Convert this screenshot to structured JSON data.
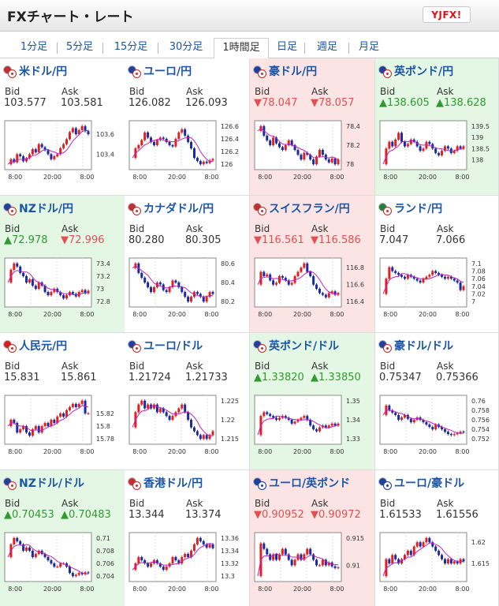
{
  "header": {
    "title": "FXチャート・レート",
    "logo_text": "YJFX!"
  },
  "tabs": [
    {
      "label": "1分足",
      "active": false
    },
    {
      "label": "5分足",
      "active": false
    },
    {
      "label": "15分足",
      "active": false
    },
    {
      "label": "30分足",
      "active": false
    },
    {
      "label": "1時間足",
      "active": true
    },
    {
      "label": "日足",
      "active": false
    },
    {
      "label": "週足",
      "active": false
    },
    {
      "label": "月足",
      "active": false
    }
  ],
  "labels": {
    "bid": "Bid",
    "ask": "Ask"
  },
  "colors": {
    "down_bg": "#fde4e4",
    "up_bg": "#e4f7e4",
    "bull": "#e02020",
    "bear": "#1a2aa0",
    "ma": "#c020c0",
    "ma2": "#20a0b0"
  },
  "pairs": [
    {
      "name": "米ドル/円",
      "flags": [
        "#c03030",
        "#c03030"
      ],
      "bid": "103.577",
      "ask": "103.581",
      "bid_dir": "",
      "ask_dir": "",
      "state": "",
      "ticks": [
        "103.6",
        "103.4"
      ],
      "x_ticks": [
        "8:00",
        "20:00",
        "8:00"
      ],
      "series": [
        103.3,
        103.35,
        103.32,
        103.4,
        103.38,
        103.33,
        103.36,
        103.4,
        103.45,
        103.42,
        103.5,
        103.47,
        103.44,
        103.4,
        103.35,
        103.38,
        103.4,
        103.46,
        103.5,
        103.55,
        103.62,
        103.66,
        103.6,
        103.64,
        103.68,
        103.63,
        103.6
      ]
    },
    {
      "name": "ユーロ/円",
      "flags": [
        "#2040a0",
        "#c03030"
      ],
      "bid": "126.082",
      "ask": "126.093",
      "bid_dir": "",
      "ask_dir": "",
      "state": "",
      "ticks": [
        "126.6",
        "126.4",
        "126.2",
        "126"
      ],
      "x_ticks": [
        "8:00",
        "20:00",
        "8:00"
      ],
      "series": [
        126.1,
        126.25,
        126.3,
        126.38,
        126.5,
        126.42,
        126.35,
        126.3,
        126.38,
        126.42,
        126.4,
        126.35,
        126.3,
        126.28,
        126.4,
        126.5,
        126.55,
        126.45,
        126.35,
        126.25,
        126.1,
        126.05,
        126.0,
        126.04,
        126.02,
        126.06,
        126.08
      ]
    },
    {
      "name": "豪ドル/円",
      "flags": [
        "#2040a0",
        "#c03030"
      ],
      "bid": "▼78.047",
      "ask": "▼78.057",
      "bid_dir": "dn",
      "ask_dir": "dn",
      "state": "down",
      "ticks": [
        "78.4",
        "78.2",
        "78"
      ],
      "x_ticks": [
        "8:00",
        "20:00",
        "8:00"
      ],
      "series": [
        78.35,
        78.4,
        78.3,
        78.25,
        78.2,
        78.28,
        78.22,
        78.18,
        78.15,
        78.2,
        78.25,
        78.2,
        78.15,
        78.1,
        78.05,
        78.12,
        78.1,
        78.05,
        78.0,
        78.08,
        78.15,
        78.1,
        78.05,
        78.02,
        78.06,
        78.0,
        78.05
      ]
    },
    {
      "name": "英ポンド/円",
      "flags": [
        "#2040a0",
        "#c03030"
      ],
      "bid": "▲138.605",
      "ask": "▲138.628",
      "bid_dir": "upc",
      "ask_dir": "upc",
      "state": "up",
      "ticks": [
        "139.5",
        "139",
        "138.5",
        "138"
      ],
      "x_ticks": [
        "8:00",
        "20:00",
        "8:00"
      ],
      "series": [
        137.8,
        138.5,
        138.8,
        138.6,
        138.9,
        139.2,
        138.8,
        138.6,
        138.7,
        138.9,
        138.8,
        138.6,
        138.4,
        138.5,
        138.8,
        138.7,
        138.5,
        138.3,
        138.2,
        138.4,
        138.6,
        138.5,
        138.3,
        138.4,
        138.6,
        138.5,
        138.6
      ]
    },
    {
      "name": "NZドル/円",
      "flags": [
        "#2040a0",
        "#c03030"
      ],
      "bid": "▲72.978",
      "ask": "▼72.996",
      "bid_dir": "upc",
      "ask_dir": "dn",
      "state": "up",
      "ticks": [
        "73.4",
        "73.2",
        "73",
        "72.8"
      ],
      "x_ticks": [
        "8:00",
        "20:00",
        "8:00"
      ],
      "series": [
        73.1,
        73.3,
        73.4,
        73.35,
        73.25,
        73.2,
        73.1,
        73.15,
        73.05,
        73.0,
        73.1,
        73.05,
        72.95,
        72.9,
        72.95,
        73.0,
        72.95,
        72.9,
        72.85,
        72.9,
        72.95,
        72.92,
        72.88,
        72.95,
        72.98,
        72.93,
        72.97
      ]
    },
    {
      "name": "カナダドル/円",
      "flags": [
        "#c03030",
        "#c03030"
      ],
      "bid": "80.280",
      "ask": "80.305",
      "bid_dir": "",
      "ask_dir": "",
      "state": "",
      "ticks": [
        "80.6",
        "80.4",
        "80.2"
      ],
      "x_ticks": [
        "8:00",
        "20:00",
        "8:00"
      ],
      "series": [
        80.55,
        80.6,
        80.5,
        80.45,
        80.4,
        80.35,
        80.3,
        80.35,
        80.4,
        80.38,
        80.32,
        80.3,
        80.35,
        80.42,
        80.4,
        80.35,
        80.3,
        80.25,
        80.2,
        80.25,
        80.3,
        80.28,
        80.25,
        80.2,
        80.25,
        80.3,
        80.28
      ]
    },
    {
      "name": "スイスフラン/円",
      "flags": [
        "#c03030",
        "#c03030"
      ],
      "bid": "▼116.561",
      "ask": "▼116.586",
      "bid_dir": "dn",
      "ask_dir": "dn",
      "state": "down",
      "ticks": [
        "116.8",
        "116.6",
        "116.4"
      ],
      "x_ticks": [
        "8:00",
        "20:00",
        "8:00"
      ],
      "series": [
        116.6,
        116.75,
        116.7,
        116.72,
        116.65,
        116.6,
        116.62,
        116.7,
        116.68,
        116.65,
        116.6,
        116.62,
        116.7,
        116.75,
        116.8,
        116.85,
        116.75,
        116.7,
        116.6,
        116.55,
        116.5,
        116.48,
        116.45,
        116.5,
        116.52,
        116.48,
        116.5
      ]
    },
    {
      "name": "ランド/円",
      "flags": [
        "#208040",
        "#c03030"
      ],
      "bid": "7.047",
      "ask": "7.066",
      "bid_dir": "",
      "ask_dir": "",
      "state": "",
      "ticks": [
        "7.1",
        "7.08",
        "7.06",
        "7.04",
        "7.02",
        "7"
      ],
      "x_ticks": [
        "8:00",
        "20:00",
        "8:00"
      ],
      "series": [
        7.02,
        7.06,
        7.09,
        7.08,
        7.075,
        7.07,
        7.065,
        7.06,
        7.07,
        7.065,
        7.06,
        7.055,
        7.05,
        7.06,
        7.065,
        7.07,
        7.08,
        7.075,
        7.07,
        7.065,
        7.06,
        7.065,
        7.06,
        7.055,
        7.05,
        7.03,
        7.04
      ]
    },
    {
      "name": "人民元/円",
      "flags": [
        "#d02020",
        "#c03030"
      ],
      "bid": "15.831",
      "ask": "15.861",
      "bid_dir": "",
      "ask_dir": "",
      "state": "",
      "ticks": [
        "15.82",
        "15.8",
        "15.78"
      ],
      "x_ticks": [
        "8:00",
        "20:00",
        "8:00"
      ],
      "series": [
        15.8,
        15.81,
        15.805,
        15.79,
        15.795,
        15.8,
        15.79,
        15.785,
        15.795,
        15.8,
        15.79,
        15.8,
        15.805,
        15.8,
        15.81,
        15.805,
        15.815,
        15.82,
        15.815,
        15.825,
        15.83,
        15.835,
        15.83,
        15.835,
        15.84,
        15.82,
        15.82
      ]
    },
    {
      "name": "ユーロ/ドル",
      "flags": [
        "#2040a0",
        "#c03030"
      ],
      "bid": "1.21724",
      "ask": "1.21733",
      "bid_dir": "",
      "ask_dir": "",
      "state": "",
      "ticks": [
        "1.225",
        "1.22",
        "1.215"
      ],
      "x_ticks": [
        "8:00",
        "20:00",
        "8:00"
      ],
      "series": [
        1.218,
        1.222,
        1.224,
        1.225,
        1.223,
        1.224,
        1.223,
        1.224,
        1.222,
        1.223,
        1.222,
        1.221,
        1.22,
        1.221,
        1.222,
        1.223,
        1.224,
        1.222,
        1.22,
        1.218,
        1.217,
        1.216,
        1.215,
        1.216,
        1.215,
        1.216,
        1.217
      ]
    },
    {
      "name": "英ポンド/ドル",
      "flags": [
        "#2040a0",
        "#c03030"
      ],
      "bid": "▲1.33820",
      "ask": "▲1.33850",
      "bid_dir": "upc",
      "ask_dir": "upc",
      "state": "up",
      "ticks": [
        "1.35",
        "1.34",
        "1.33"
      ],
      "x_ticks": [
        "8:00",
        "20:00",
        "8:00"
      ],
      "series": [
        1.332,
        1.342,
        1.344,
        1.343,
        1.342,
        1.341,
        1.34,
        1.341,
        1.342,
        1.341,
        1.34,
        1.338,
        1.339,
        1.34,
        1.341,
        1.342,
        1.34,
        1.337,
        1.335,
        1.334,
        1.336,
        1.337,
        1.336,
        1.337,
        1.338,
        1.337,
        1.338
      ]
    },
    {
      "name": "豪ドル/ドル",
      "flags": [
        "#2040a0",
        "#c03030"
      ],
      "bid": "0.75347",
      "ask": "0.75366",
      "bid_dir": "",
      "ask_dir": "",
      "state": "",
      "ticks": [
        "0.76",
        "0.758",
        "0.756",
        "0.754",
        "0.752"
      ],
      "x_ticks": [
        "8:00",
        "20:00",
        "8:00"
      ],
      "series": [
        0.757,
        0.759,
        0.758,
        0.7575,
        0.757,
        0.756,
        0.7565,
        0.757,
        0.7562,
        0.7555,
        0.756,
        0.7565,
        0.756,
        0.7555,
        0.755,
        0.7545,
        0.754,
        0.755,
        0.7545,
        0.754,
        0.7535,
        0.753,
        0.7528,
        0.753,
        0.7532,
        0.7535,
        0.7534
      ]
    },
    {
      "name": "NZドル/ドル",
      "flags": [
        "#2040a0",
        "#c03030"
      ],
      "bid": "▲0.70453",
      "ask": "▲0.70483",
      "bid_dir": "upc",
      "ask_dir": "upc",
      "state": "up",
      "ticks": [
        "0.71",
        "0.708",
        "0.706",
        "0.704"
      ],
      "x_ticks": [
        "8:00",
        "20:00",
        "8:00"
      ],
      "series": [
        0.707,
        0.709,
        0.71,
        0.7095,
        0.709,
        0.708,
        0.7085,
        0.708,
        0.707,
        0.7075,
        0.708,
        0.7075,
        0.707,
        0.7065,
        0.706,
        0.7055,
        0.7055,
        0.706,
        0.706,
        0.7055,
        0.7045,
        0.704,
        0.7042,
        0.7045,
        0.7043,
        0.7046,
        0.7045
      ]
    },
    {
      "name": "香港ドル/円",
      "flags": [
        "#c03030",
        "#c03030"
      ],
      "bid": "13.344",
      "ask": "13.374",
      "bid_dir": "",
      "ask_dir": "",
      "state": "",
      "ticks": [
        "13.36",
        "13.34",
        "13.32",
        "13.3"
      ],
      "x_ticks": [
        "8:00",
        "20:00",
        "8:00"
      ],
      "series": [
        13.31,
        13.32,
        13.33,
        13.325,
        13.32,
        13.315,
        13.32,
        13.325,
        13.32,
        13.315,
        13.31,
        13.315,
        13.32,
        13.33,
        13.325,
        13.32,
        13.33,
        13.335,
        13.33,
        13.34,
        13.35,
        13.36,
        13.355,
        13.35,
        13.345,
        13.35,
        13.344
      ]
    },
    {
      "name": "ユーロ/英ポンド",
      "flags": [
        "#2040a0",
        "#2040a0"
      ],
      "bid": "▼0.90952",
      "ask": "▼0.90972",
      "bid_dir": "dn",
      "ask_dir": "dn",
      "state": "down",
      "ticks": [
        "0.915",
        "0.91"
      ],
      "x_ticks": [
        "8:00",
        "20:00",
        "8:00"
      ],
      "series": [
        0.908,
        0.914,
        0.913,
        0.912,
        0.911,
        0.912,
        0.911,
        0.912,
        0.913,
        0.912,
        0.911,
        0.91,
        0.911,
        0.912,
        0.911,
        0.912,
        0.913,
        0.912,
        0.911,
        0.91,
        0.91,
        0.911,
        0.91,
        0.9105,
        0.9098,
        0.9095,
        0.9096
      ]
    },
    {
      "name": "ユーロ/豪ドル",
      "flags": [
        "#2040a0",
        "#2040a0"
      ],
      "bid": "1.61533",
      "ask": "1.61556",
      "bid_dir": "",
      "ask_dir": "",
      "state": "",
      "ticks": [
        "1.62",
        "1.615"
      ],
      "x_ticks": [
        "8:00",
        "20:00",
        "8:00"
      ],
      "series": [
        1.612,
        1.616,
        1.615,
        1.617,
        1.616,
        1.615,
        1.616,
        1.617,
        1.618,
        1.617,
        1.619,
        1.62,
        1.619,
        1.62,
        1.621,
        1.62,
        1.619,
        1.618,
        1.617,
        1.616,
        1.615,
        1.616,
        1.615,
        1.6155,
        1.615,
        1.616,
        1.6155
      ]
    }
  ]
}
